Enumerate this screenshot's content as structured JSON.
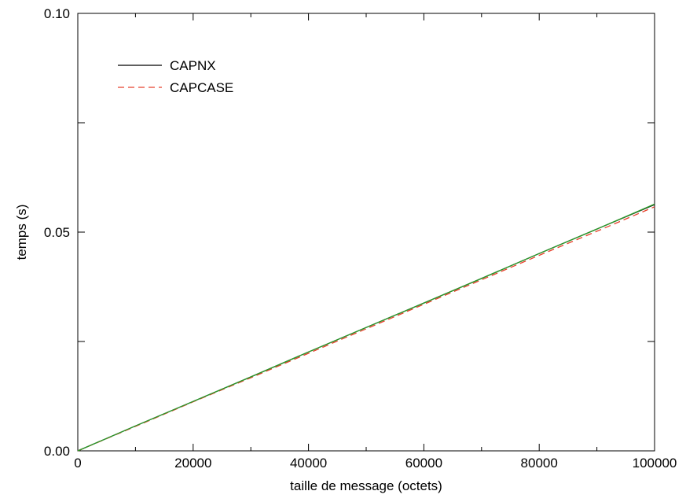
{
  "chart_data": {
    "type": "line",
    "xlabel": "taille de message (octets)",
    "ylabel": "temps (s)",
    "xlim": [
      0,
      100000
    ],
    "ylim": [
      0,
      0.1
    ],
    "x_ticks": [
      0,
      20000,
      40000,
      60000,
      80000,
      100000
    ],
    "x_tick_labels": [
      "0",
      "20000",
      "40000",
      "60000",
      "80000",
      "100000"
    ],
    "y_labeled_ticks": [
      0,
      0.05,
      0.1
    ],
    "y_tick_labels": [
      "0.00",
      "0.05",
      "0.10"
    ],
    "y_minor_ticks": [
      0.025,
      0.075
    ],
    "x_minor_ticks": [
      10000,
      30000,
      50000,
      70000,
      90000
    ],
    "grid": false,
    "legend_position": "top-left",
    "series": [
      {
        "name": "CAPNX",
        "style": "solid",
        "color": "#000000",
        "x": [
          0,
          10000,
          20000,
          30000,
          40000,
          50000,
          60000,
          70000,
          80000,
          90000,
          100000
        ],
        "y": [
          0.0,
          0.0057,
          0.0113,
          0.0169,
          0.0226,
          0.0282,
          0.0338,
          0.0394,
          0.0451,
          0.0507,
          0.0563
        ]
      },
      {
        "name": "CAPCASE",
        "style": "dashed",
        "color": "#e8412c",
        "x": [
          0,
          10000,
          20000,
          30000,
          40000,
          50000,
          60000,
          70000,
          80000,
          90000,
          100000
        ],
        "y": [
          0.0,
          0.0056,
          0.0112,
          0.0167,
          0.0223,
          0.0279,
          0.0335,
          0.0391,
          0.0447,
          0.0502,
          0.0558
        ]
      },
      {
        "style": "solid",
        "color": "#2a9d2a",
        "x": [
          0,
          10000,
          20000,
          30000,
          40000,
          50000,
          60000,
          70000,
          80000,
          90000,
          100000
        ],
        "y": [
          0.0,
          0.0057,
          0.0113,
          0.0169,
          0.0226,
          0.0282,
          0.0338,
          0.0394,
          0.0451,
          0.0507,
          0.0564
        ]
      }
    ]
  }
}
